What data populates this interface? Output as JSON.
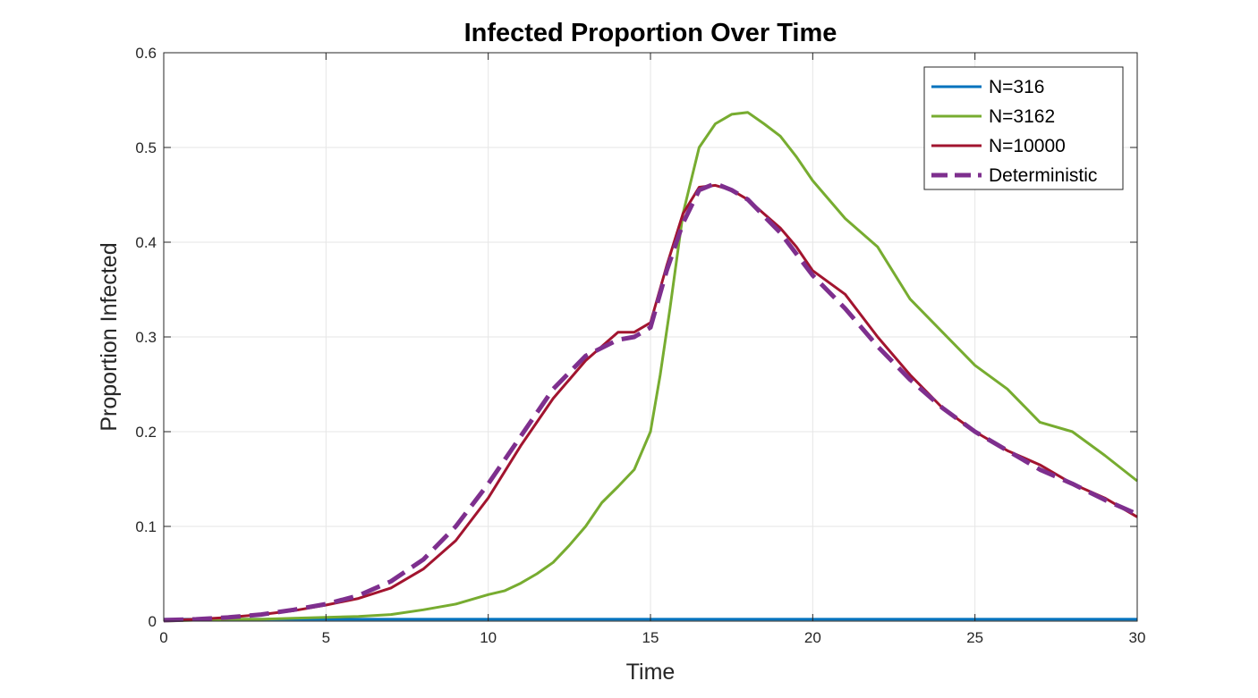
{
  "chart_data": {
    "type": "line",
    "title": "Infected Proportion Over Time",
    "xlabel": "Time",
    "ylabel": "Proportion Infected",
    "xlim": [
      0,
      30
    ],
    "ylim": [
      0,
      0.6
    ],
    "xticks": [
      0,
      5,
      10,
      15,
      20,
      25,
      30
    ],
    "xtick_labels": [
      "0",
      "5",
      "10",
      "15",
      "20",
      "25",
      "30"
    ],
    "yticks": [
      0,
      0.1,
      0.2,
      0.3,
      0.4,
      0.5,
      0.6
    ],
    "ytick_labels": [
      "0",
      "0.1",
      "0.2",
      "0.3",
      "0.4",
      "0.5",
      "0.6"
    ],
    "grid": true,
    "legend_position": "top-right",
    "series": [
      {
        "name": "N=316",
        "color": "#0072BD",
        "style": "solid",
        "x": [
          0,
          30
        ],
        "y": [
          0.002,
          0.002
        ],
        "visible_in_plot": false
      },
      {
        "name": "N=3162",
        "color": "#77AC30",
        "style": "solid",
        "x": [
          0,
          1,
          2,
          3,
          4,
          5,
          6,
          7,
          8,
          9,
          10,
          10.5,
          11,
          11.5,
          12,
          12.5,
          13,
          13.5,
          14,
          14.5,
          15,
          15.3,
          15.6,
          16,
          16.5,
          17,
          17.5,
          18,
          18.5,
          19,
          19.5,
          20,
          21,
          22,
          23,
          24,
          25,
          26,
          27,
          28,
          29,
          30
        ],
        "y": [
          0.0,
          0.001,
          0.002,
          0.002,
          0.003,
          0.004,
          0.005,
          0.007,
          0.012,
          0.018,
          0.028,
          0.032,
          0.04,
          0.05,
          0.062,
          0.08,
          0.1,
          0.125,
          0.142,
          0.16,
          0.2,
          0.26,
          0.33,
          0.43,
          0.5,
          0.525,
          0.535,
          0.537,
          0.525,
          0.512,
          0.49,
          0.465,
          0.425,
          0.395,
          0.34,
          0.305,
          0.27,
          0.245,
          0.21,
          0.2,
          0.175,
          0.148
        ]
      },
      {
        "name": "N=10000",
        "color": "#A2142F",
        "style": "solid",
        "x": [
          0,
          1,
          2,
          3,
          4,
          5,
          6,
          7,
          8,
          9,
          10,
          11,
          12,
          13,
          13.5,
          14,
          14.5,
          15,
          15.5,
          16,
          16.5,
          17,
          17.5,
          18,
          18.5,
          19,
          19.5,
          20,
          21,
          22,
          23,
          24,
          25,
          26,
          27,
          28,
          29,
          30
        ],
        "y": [
          0.001,
          0.002,
          0.004,
          0.007,
          0.011,
          0.017,
          0.024,
          0.035,
          0.055,
          0.085,
          0.13,
          0.185,
          0.235,
          0.275,
          0.29,
          0.305,
          0.305,
          0.315,
          0.375,
          0.43,
          0.458,
          0.46,
          0.455,
          0.445,
          0.43,
          0.415,
          0.395,
          0.37,
          0.345,
          0.3,
          0.26,
          0.225,
          0.2,
          0.18,
          0.165,
          0.145,
          0.13,
          0.11
        ]
      },
      {
        "name": "Deterministic",
        "color": "#7E2F8E",
        "style": "dashed",
        "x": [
          0,
          1,
          2,
          3,
          4,
          5,
          6,
          7,
          8,
          9,
          10,
          11,
          12,
          13,
          14,
          14.5,
          15,
          15.5,
          16,
          16.5,
          17,
          17.5,
          18,
          19,
          20,
          21,
          22,
          23,
          24,
          25,
          26,
          27,
          28,
          29,
          30
        ],
        "y": [
          0.001,
          0.002,
          0.004,
          0.007,
          0.012,
          0.018,
          0.027,
          0.042,
          0.065,
          0.1,
          0.145,
          0.195,
          0.245,
          0.28,
          0.297,
          0.3,
          0.31,
          0.37,
          0.42,
          0.455,
          0.462,
          0.455,
          0.445,
          0.41,
          0.365,
          0.33,
          0.29,
          0.255,
          0.225,
          0.2,
          0.18,
          0.16,
          0.145,
          0.128,
          0.113
        ]
      }
    ]
  }
}
